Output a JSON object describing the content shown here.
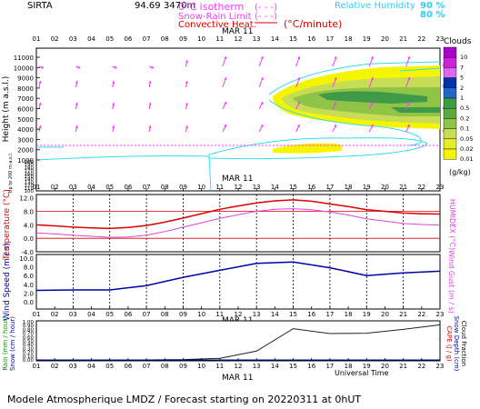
{
  "header": {
    "station": "SIRTA",
    "coords": "94.69",
    "coords_overlap": "3470m",
    "legend_isotherm": "0°C isotherm",
    "legend_snow": "Snow-Rain Limit",
    "legend_convective": "Convective Heat.",
    "legend_convective_unit": "(°C/minute)",
    "legend_rh": "Relative Humidity",
    "rh_90": "90 %",
    "rh_80": "80 %",
    "legend_rh_dashes": "(- - -)",
    "legend_snow_dashes": "(- - -)"
  },
  "colors": {
    "magenta": "#ff33ff",
    "cyan": "#33ddee",
    "temp_red": "#dd0000",
    "humidex": "#dd44dd",
    "wind_blue": "#0000aa",
    "rain": "#222222",
    "cloud_yellow": "#f5f500",
    "cloud_lightgreen": "#c6dd55",
    "cloud_green": "#8fc447",
    "cloud_darkgreen": "#3e9a46"
  },
  "date_label": "MAR 11",
  "hours": [
    "01",
    "02",
    "03",
    "04",
    "05",
    "06",
    "07",
    "08",
    "09",
    "10",
    "11",
    "12",
    "13",
    "14",
    "15",
    "16",
    "17",
    "18",
    "19",
    "20",
    "21",
    "22",
    "23"
  ],
  "footer": {
    "universal_time": "Universal Time",
    "model_note": "Modele Atmospherique LMDZ / Forecast starting on 20220311 at 0hUT"
  },
  "clouds_legend": {
    "title": "Clouds",
    "unit": "(g/kg)",
    "levels": [
      "10",
      "7",
      "5",
      "2",
      "1",
      "0.5",
      "0.2",
      "0.1",
      "0.05",
      "0.02",
      "0.01"
    ],
    "colors": [
      "#aa00cc",
      "#cc22dd",
      "#dd66ee",
      "#0033aa",
      "#2266cc",
      "#3e9a46",
      "#5aaa3e",
      "#8fc447",
      "#c6dd55",
      "#e5ec2a",
      "#f5f500"
    ]
  },
  "chart_data": [
    {
      "type": "area",
      "name": "height-cloud-panel",
      "ylabel": "Height (m a.s.l.)",
      "y_ticks": [
        1000,
        2000,
        3000,
        4000,
        5000,
        6000,
        7000,
        8000,
        9000,
        10000,
        11000
      ],
      "ylim": [
        0,
        11500
      ],
      "lower_ylabel": "Up to 200 m a.s.l.",
      "lower_ticks": [
        100,
        110,
        120,
        130,
        140,
        150,
        160,
        170,
        180,
        190,
        200
      ]
    },
    {
      "type": "line",
      "name": "temperature-panel",
      "ylabel": "Temperature (°C)",
      "right_label": "HUMIDEX (°C)",
      "y_ticks": [
        -4.0,
        0.0,
        4.0,
        8.0,
        12.0
      ],
      "ylim": [
        -4,
        13
      ],
      "x": [
        1,
        2,
        3,
        4,
        5,
        6,
        7,
        8,
        9,
        10,
        11,
        12,
        13,
        14,
        15,
        16,
        17,
        18,
        19,
        20,
        21,
        22,
        23
      ],
      "series": [
        {
          "values": [
            4.0,
            3.7,
            3.3,
            3.1,
            2.9,
            3.2,
            3.8,
            4.8,
            6.0,
            7.3,
            8.6,
            9.6,
            10.5,
            11.1,
            11.4,
            11.0,
            10.2,
            9.4,
            8.5,
            8.0,
            7.5,
            7.3,
            7.2
          ]
        },
        {
          "values": [
            1.6,
            1.3,
            0.9,
            0.6,
            0.3,
            0.4,
            0.9,
            2.0,
            3.3,
            4.6,
            5.9,
            7.0,
            8.0,
            8.6,
            8.8,
            8.5,
            7.8,
            6.9,
            5.8,
            5.1,
            4.4,
            4.1,
            3.9
          ]
        }
      ]
    },
    {
      "type": "line",
      "name": "wind-panel",
      "ylabel": "Wind Speed (m / s)",
      "right_label": "Wind Gust (m / s)",
      "y_ticks": [
        0.0,
        2.0,
        4.0,
        6.0,
        8.0,
        10.0
      ],
      "ylim": [
        0,
        10
      ],
      "x": [
        1,
        3,
        5,
        7,
        9,
        11,
        13,
        15,
        17,
        19,
        21,
        23
      ],
      "series": [
        {
          "values": [
            2.6,
            2.7,
            2.7,
            3.7,
            5.6,
            7.2,
            8.8,
            9.1,
            7.8,
            6.0,
            6.6,
            7.0
          ]
        }
      ]
    },
    {
      "type": "line",
      "name": "rain-panel",
      "ylabel": "Rain (mm / hour)",
      "ylabel2": "Snow (cm / hour)",
      "right_label": "CAPE (J / g)",
      "right_label2": "Snow Depth (cm)",
      "right_label3": "Cloud Fraction",
      "y_ticks": [
        0.0,
        0.1,
        0.2,
        0.3,
        0.4,
        0.5,
        0.6,
        0.7,
        0.8,
        0.9,
        1.0
      ],
      "ylim": [
        0,
        1
      ],
      "x": [
        1,
        3,
        5,
        7,
        9,
        11,
        13,
        15,
        17,
        19,
        21,
        23
      ],
      "series": [
        {
          "values": [
            0.0,
            0.0,
            0.0,
            0.0,
            0.01,
            0.04,
            0.23,
            0.82,
            0.69,
            0.7,
            0.8,
            0.92
          ]
        }
      ]
    }
  ]
}
